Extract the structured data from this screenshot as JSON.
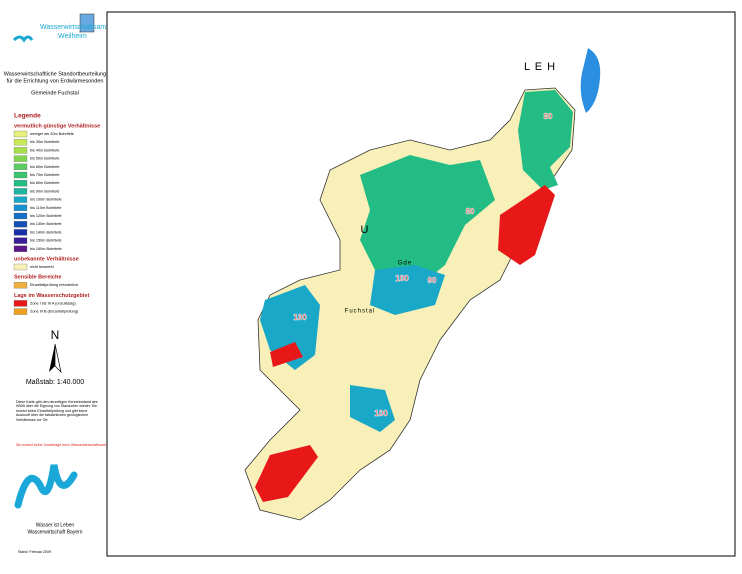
{
  "header": {
    "agency_line1": "Wasserwirtschaftsamt",
    "agency_line2": "Weilheim"
  },
  "title": {
    "line1": "Wasserwirtschaftliche Standortbeurteilung",
    "line2": "für die Errichtung von Erdwärmesonden",
    "municipality": "Gemeinde Fuchstal"
  },
  "legend": {
    "heading": "Legende",
    "favorable": {
      "heading": "vermutlich günstige Verhältnisse",
      "items": [
        {
          "label": "weniger als 20m Bohrtiefe",
          "color": "#e6f07a"
        },
        {
          "label": "bis 30m Bohrtiefe",
          "color": "#c8ea5a"
        },
        {
          "label": "bis 40m Bohrtiefe",
          "color": "#a6e04a"
        },
        {
          "label": "bis 50m Bohrtiefe",
          "color": "#80d650"
        },
        {
          "label": "bis 60m Bohrtiefe",
          "color": "#5ccc60"
        },
        {
          "label": "bis 70m Bohrtiefe",
          "color": "#3cc470"
        },
        {
          "label": "bis 80m Bohrtiefe",
          "color": "#22bc84"
        },
        {
          "label": "bis 90m Bohrtiefe",
          "color": "#1cb4a0"
        },
        {
          "label": "bis 100m Bohrtiefe",
          "color": "#1aa8c8"
        },
        {
          "label": "bis 110m Bohrtiefe",
          "color": "#1890d0"
        },
        {
          "label": "bis 120m Bohrtiefe",
          "color": "#1670c8"
        },
        {
          "label": "bis 130m Bohrtiefe",
          "color": "#1450b8"
        },
        {
          "label": "bis 140m Bohrtiefe",
          "color": "#1a30a8"
        },
        {
          "label": "bis 150m Bohrtiefe",
          "color": "#3a2098"
        },
        {
          "label": "bis 160m Bohrtiefe",
          "color": "#5a1888"
        }
      ]
    },
    "unknown": {
      "heading": "unbekannte Verhältnisse",
      "items": [
        {
          "label": "nicht bewertet",
          "color": "#f8f0b8"
        }
      ]
    },
    "sensitive": {
      "heading": "Sensible Bereiche",
      "items": [
        {
          "label": "Einzelfallprüfung erforderlich",
          "color": "#f0b040"
        }
      ]
    },
    "protection": {
      "heading": "Lage im Wasserschutzgebiet",
      "items": [
        {
          "label": "Zone I bis III A (unzulässig)",
          "color": "#e81818"
        },
        {
          "label": "Zone III B (Einzelfallprüfung)",
          "color": "#f0a020"
        }
      ]
    }
  },
  "north": "N",
  "scale": "Maßstab: 1:40.000",
  "note": "Diese Karte gibt den derzeitigen Kenntnisstand des WWA über die Eignung von Standorten wieder. Sie ersetzt keine Einzelfallprüfung und gibt keine Auskunft über die tatsächlichen geologischen Verhältnisse vor Ort.",
  "warning": "Sie ersetzt keine Vorabfrage beim Wasserwirtschaftsamt",
  "logo": {
    "line1": "Wasser ist Leben",
    "line2": "Wasserwirtschaft Bayern"
  },
  "footer": "Stand: Februar 2009",
  "map": {
    "places": [
      "L E H",
      "U",
      "Gde",
      "Fuchstal"
    ],
    "zones": [
      "80",
      "80",
      "90",
      "100",
      "100",
      "100"
    ]
  }
}
